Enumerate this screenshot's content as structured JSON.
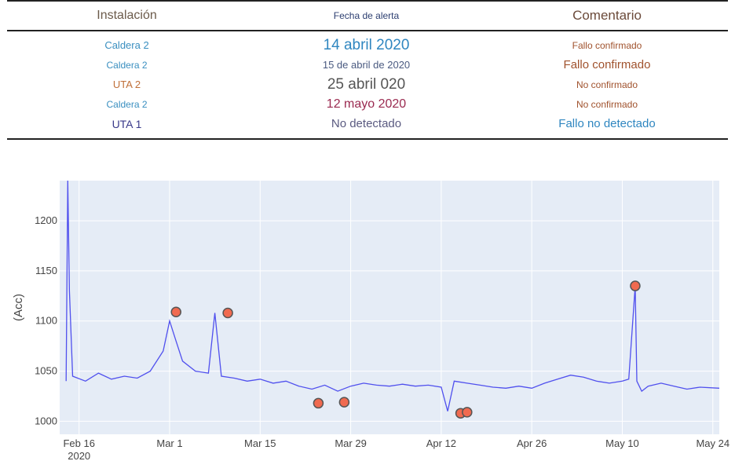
{
  "table": {
    "headers": [
      "Instalación",
      "Fecha de alerta",
      "Comentario"
    ],
    "rows": [
      {
        "installation": "Caldera 2",
        "date": "14 abril 2020",
        "comment": "Fallo confirmado"
      },
      {
        "installation": "Caldera 2",
        "date": "15 de abril de 2020",
        "comment": "Fallo confirmado"
      },
      {
        "installation": "UTA 2",
        "date": "25 abril 020",
        "comment": "No confirmado"
      },
      {
        "installation": "Caldera 2",
        "date": "12 mayo 2020",
        "comment": "No confirmado"
      },
      {
        "installation": "UTA 1",
        "date": "No detectado",
        "comment": "Fallo no detectado"
      }
    ]
  },
  "styles": {
    "row_colors": [
      {
        "installation": "#3a8fc0",
        "date": "#2f86c0",
        "comment": "#a0522d"
      },
      {
        "installation": "#3a8fc0",
        "date": "#4a5a80",
        "comment": "#a0522d"
      },
      {
        "installation": "#c0703a",
        "date": "#555555",
        "comment": "#a0522d"
      },
      {
        "installation": "#3a8fc0",
        "date": "#9a2a50",
        "comment": "#a0522d"
      },
      {
        "installation": "#3a3a8a",
        "date": "#5a5a80",
        "comment": "#2f86c0"
      }
    ],
    "row_sizes": [
      {
        "installation": 13,
        "date": 19,
        "comment": 12
      },
      {
        "installation": 12,
        "date": 13,
        "comment": 15
      },
      {
        "installation": 13,
        "date": 19,
        "comment": 12
      },
      {
        "installation": 12,
        "date": 16,
        "comment": 12
      },
      {
        "installation": 14,
        "date": 15,
        "comment": 15
      }
    ]
  },
  "chart_data": {
    "type": "line",
    "ylabel": "(Acc)",
    "xlabel": "",
    "xlim": [
      "2020-02-13",
      "2020-05-25"
    ],
    "ylim": [
      987,
      1240
    ],
    "y_ticks": [
      1000,
      1050,
      1100,
      1150,
      1200
    ],
    "x_ticks": [
      {
        "date": "2020-02-16",
        "label": "Feb 16",
        "sublabel": "2020"
      },
      {
        "date": "2020-03-01",
        "label": "Mar 1"
      },
      {
        "date": "2020-03-15",
        "label": "Mar 15"
      },
      {
        "date": "2020-03-29",
        "label": "Mar 29"
      },
      {
        "date": "2020-04-12",
        "label": "Apr 12"
      },
      {
        "date": "2020-04-26",
        "label": "Apr 26"
      },
      {
        "date": "2020-05-10",
        "label": "May 10"
      },
      {
        "date": "2020-05-24",
        "label": "May 24"
      }
    ],
    "series": [
      {
        "color": "#5050ee",
        "points": [
          [
            "2020-02-14",
            1040
          ],
          [
            "2020-02-14T06:00",
            1240
          ],
          [
            "2020-02-14T12:00",
            1130
          ],
          [
            "2020-02-15",
            1045
          ],
          [
            "2020-02-17",
            1040
          ],
          [
            "2020-02-19",
            1048
          ],
          [
            "2020-02-21",
            1042
          ],
          [
            "2020-02-23",
            1045
          ],
          [
            "2020-02-25",
            1043
          ],
          [
            "2020-02-27",
            1050
          ],
          [
            "2020-02-29",
            1070
          ],
          [
            "2020-03-01",
            1100
          ],
          [
            "2020-03-02",
            1080
          ],
          [
            "2020-03-03",
            1060
          ],
          [
            "2020-03-05",
            1050
          ],
          [
            "2020-03-07",
            1048
          ],
          [
            "2020-03-08",
            1108
          ],
          [
            "2020-03-09",
            1045
          ],
          [
            "2020-03-11",
            1043
          ],
          [
            "2020-03-13",
            1040
          ],
          [
            "2020-03-15",
            1042
          ],
          [
            "2020-03-17",
            1038
          ],
          [
            "2020-03-19",
            1040
          ],
          [
            "2020-03-21",
            1035
          ],
          [
            "2020-03-23",
            1032
          ],
          [
            "2020-03-25",
            1036
          ],
          [
            "2020-03-27",
            1030
          ],
          [
            "2020-03-29",
            1035
          ],
          [
            "2020-03-31",
            1038
          ],
          [
            "2020-04-02",
            1036
          ],
          [
            "2020-04-04",
            1035
          ],
          [
            "2020-04-06",
            1037
          ],
          [
            "2020-04-08",
            1035
          ],
          [
            "2020-04-10",
            1036
          ],
          [
            "2020-04-12",
            1034
          ],
          [
            "2020-04-13",
            1010
          ],
          [
            "2020-04-14",
            1040
          ],
          [
            "2020-04-16",
            1038
          ],
          [
            "2020-04-18",
            1036
          ],
          [
            "2020-04-20",
            1034
          ],
          [
            "2020-04-22",
            1033
          ],
          [
            "2020-04-24",
            1035
          ],
          [
            "2020-04-26",
            1033
          ],
          [
            "2020-04-28",
            1038
          ],
          [
            "2020-04-30",
            1042
          ],
          [
            "2020-05-02",
            1046
          ],
          [
            "2020-05-04",
            1044
          ],
          [
            "2020-05-06",
            1040
          ],
          [
            "2020-05-08",
            1038
          ],
          [
            "2020-05-10",
            1040
          ],
          [
            "2020-05-11",
            1042
          ],
          [
            "2020-05-12",
            1135
          ],
          [
            "2020-05-12T06:00",
            1040
          ],
          [
            "2020-05-13",
            1030
          ],
          [
            "2020-05-14",
            1035
          ],
          [
            "2020-05-16",
            1038
          ],
          [
            "2020-05-18",
            1035
          ],
          [
            "2020-05-20",
            1032
          ],
          [
            "2020-05-22",
            1034
          ],
          [
            "2020-05-25",
            1033
          ]
        ]
      }
    ],
    "markers": [
      {
        "x": "2020-03-02",
        "y": 1109
      },
      {
        "x": "2020-03-10",
        "y": 1108
      },
      {
        "x": "2020-03-24",
        "y": 1018
      },
      {
        "x": "2020-03-28",
        "y": 1019
      },
      {
        "x": "2020-04-15",
        "y": 1008
      },
      {
        "x": "2020-04-16",
        "y": 1009
      },
      {
        "x": "2020-05-12",
        "y": 1135
      }
    ],
    "marker_color": "#f06a50",
    "plot_bg": "#e5ecf6",
    "grid": true
  }
}
